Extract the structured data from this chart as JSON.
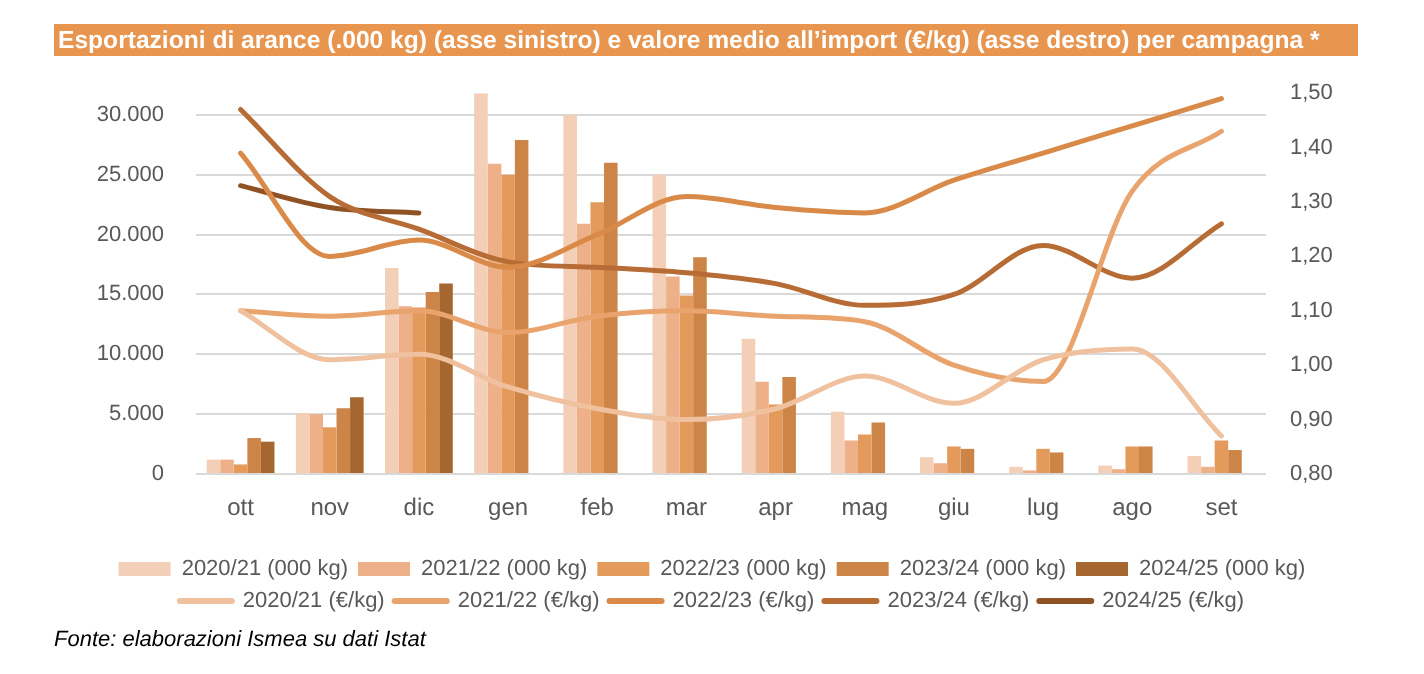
{
  "chart_data": {
    "type": "bar",
    "title": "Esportazioni di arance (.000 kg) (asse sinistro) e valore medio all’import (€/kg) (asse destro) per campagna *",
    "categories": [
      "ott",
      "nov",
      "dic",
      "gen",
      "feb",
      "mar",
      "apr",
      "mag",
      "giu",
      "lug",
      "ago",
      "set"
    ],
    "series": [
      {
        "name": "2020/21 (000 kg)",
        "color": "#f4cfb7",
        "values": [
          1200,
          5100,
          17200,
          31800,
          30000,
          25000,
          11300,
          5200,
          1400,
          600,
          700,
          1500
        ]
      },
      {
        "name": "2021/22 (000 kg)",
        "color": "#edb088",
        "values": [
          1200,
          5000,
          14000,
          25900,
          20900,
          16500,
          7700,
          2800,
          900,
          300,
          400,
          600
        ]
      },
      {
        "name": "2022/23 (000 kg)",
        "color": "#e39a5b",
        "values": [
          800,
          3900,
          13900,
          25000,
          22700,
          14900,
          5800,
          3300,
          2300,
          2100,
          2300,
          2800
        ]
      },
      {
        "name": "2023/24 (000 kg)",
        "color": "#cd8447",
        "values": [
          3000,
          5500,
          15200,
          27900,
          26000,
          18100,
          8100,
          4300,
          2100,
          1800,
          2300,
          2000
        ]
      },
      {
        "name": "2024/25 (000 kg)",
        "color": "#a5672f",
        "values": [
          2700,
          6400,
          15900,
          null,
          null,
          null,
          null,
          null,
          null,
          null,
          null,
          null
        ]
      },
      {
        "name": "2020/21 (€/kg)",
        "type": "line",
        "axis": "y2",
        "color": "#f0c19f",
        "values": [
          1.1,
          1.01,
          1.02,
          0.96,
          0.92,
          0.9,
          0.92,
          0.98,
          0.93,
          1.01,
          1.03,
          0.87
        ]
      },
      {
        "name": "2021/22 (€/kg)",
        "type": "line",
        "axis": "y2",
        "color": "#e9a46e",
        "values": [
          1.1,
          1.09,
          1.1,
          1.06,
          1.09,
          1.1,
          1.09,
          1.08,
          1.0,
          0.97,
          1.32,
          1.43
        ]
      },
      {
        "name": "2022/23 (€/kg)",
        "type": "line",
        "axis": "y2",
        "color": "#d98a48",
        "values": [
          1.39,
          1.2,
          1.23,
          1.18,
          1.24,
          1.31,
          1.29,
          1.28,
          1.34,
          1.39,
          1.44,
          1.49
        ]
      },
      {
        "name": "2023/24 (€/kg)",
        "type": "line",
        "axis": "y2",
        "color": "#b76c35",
        "values": [
          1.47,
          1.31,
          1.25,
          1.19,
          1.18,
          1.17,
          1.15,
          1.11,
          1.13,
          1.22,
          1.16,
          1.26
        ]
      },
      {
        "name": "2024/25 (€/kg)",
        "type": "line",
        "axis": "y2",
        "color": "#8f5224",
        "values": [
          1.33,
          1.29,
          1.28,
          null,
          null,
          null,
          null,
          null,
          null,
          null,
          null,
          null
        ]
      }
    ],
    "ylim": [
      0,
      31800
    ],
    "yticks": [
      0,
      {
        "value": 5000,
        "label": "5.000"
      },
      {
        "value": 10000,
        "label": "10.000"
      },
      {
        "value": 15000,
        "label": "15.000"
      },
      {
        "value": 20000,
        "label": "20.000"
      },
      {
        "value": 25000,
        "label": "25.000"
      },
      {
        "value": 30000,
        "label": "30.000"
      }
    ],
    "y2lim": [
      0.8,
      1.5
    ],
    "y2ticks": [
      {
        "value": 0.8,
        "label": "0,80"
      },
      {
        "value": 0.9,
        "label": "0,90"
      },
      {
        "value": 1.0,
        "label": "1,00"
      },
      {
        "value": 1.1,
        "label": "1,10"
      },
      {
        "value": 1.2,
        "label": "1,20"
      },
      {
        "value": 1.3,
        "label": "1,30"
      },
      {
        "value": 1.4,
        "label": "1,40"
      },
      {
        "value": 1.5,
        "label": "1,50"
      }
    ],
    "grid": "y",
    "legend": "bottom",
    "marker": "none",
    "annotations": [
      "Fonte: elaborazioni Ismea su dati Istat"
    ]
  }
}
